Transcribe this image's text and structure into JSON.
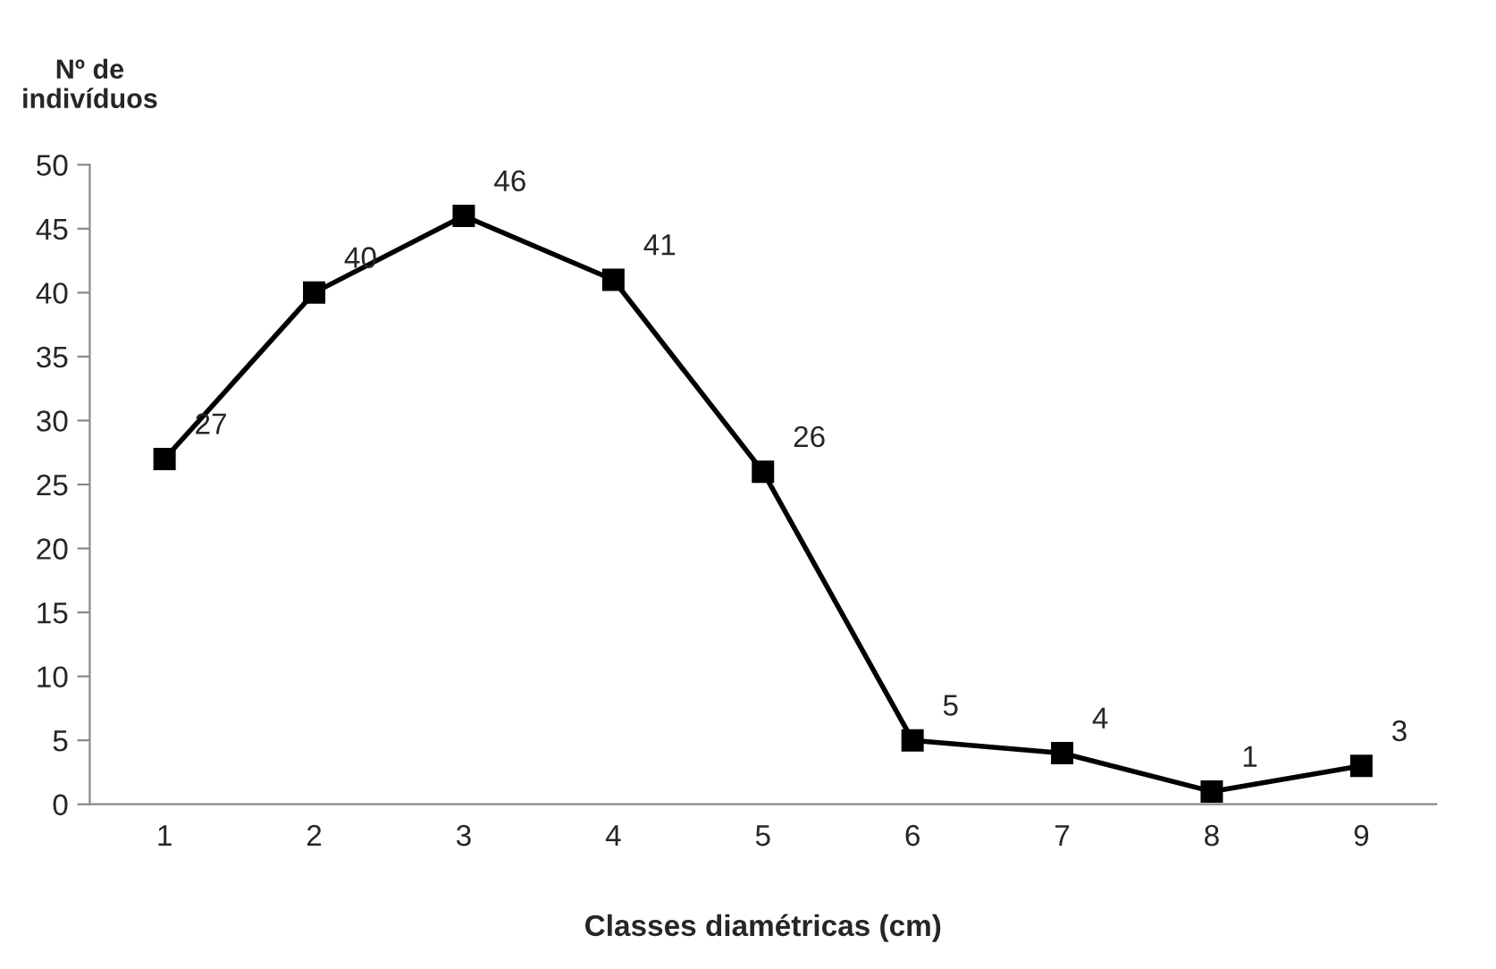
{
  "chart_data": {
    "type": "line",
    "xlabel": "Classes diamétricas (cm)",
    "ylabel": "Nº de\nindivíduos",
    "categories": [
      "1",
      "2",
      "3",
      "4",
      "5",
      "6",
      "7",
      "8",
      "9"
    ],
    "series": [
      {
        "color": "#000000",
        "values": [
          27,
          40,
          46,
          41,
          26,
          5,
          4,
          1,
          3
        ]
      }
    ],
    "ylim": [
      0,
      50
    ],
    "yticks": [
      0,
      5,
      10,
      15,
      20,
      25,
      30,
      35,
      40,
      45,
      50
    ],
    "marker": "square",
    "line_style": "solid",
    "data_labels": true,
    "grid": false,
    "legend": false
  }
}
